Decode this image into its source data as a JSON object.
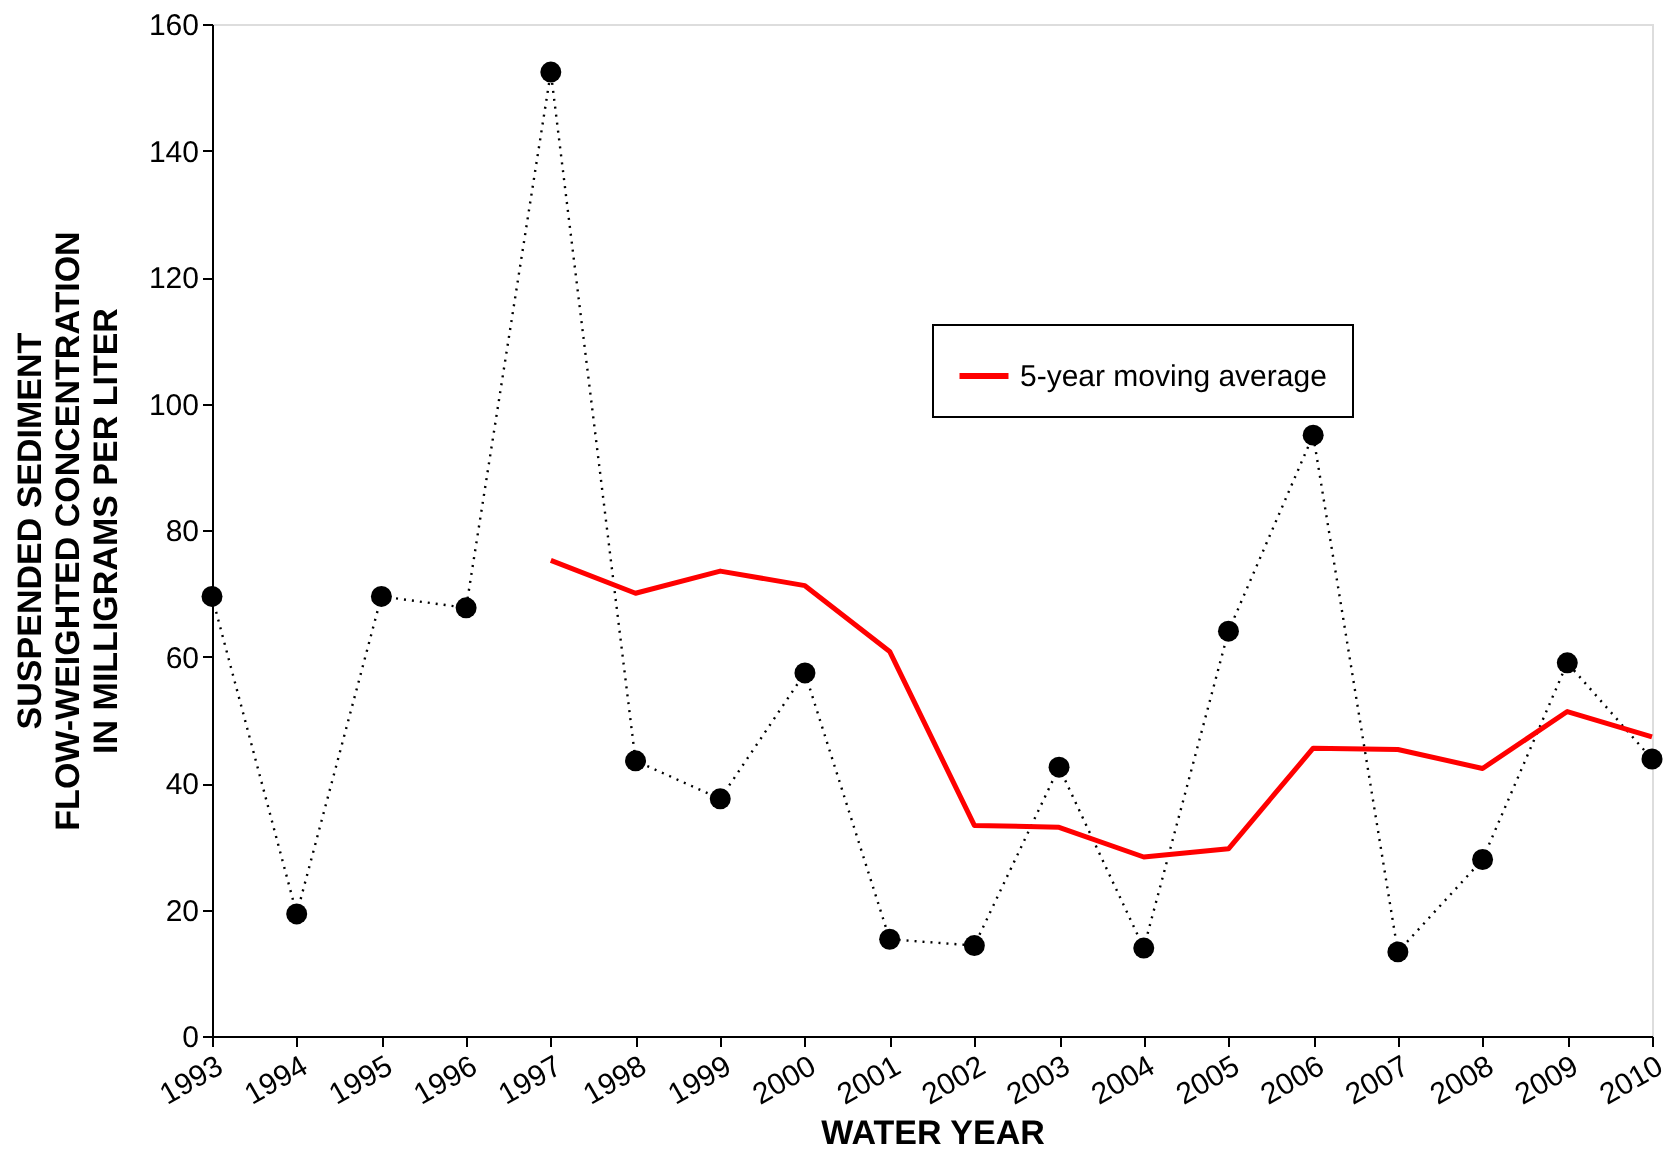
{
  "chart_data": {
    "type": "line",
    "xlabel": "WATER YEAR",
    "ylabel": "SUSPENDED SEDIMENT\nFLOW-WEIGHTED CONCENTRATION\nIN MILLIGRAMS PER LITER",
    "x": [
      1993,
      1994,
      1995,
      1996,
      1997,
      1998,
      1999,
      2000,
      2001,
      2002,
      2003,
      2004,
      2005,
      2006,
      2007,
      2008,
      2009,
      2010
    ],
    "series": [
      {
        "color": "#000000",
        "line_style": "dotted",
        "marker": "circle",
        "values": [
          69.5,
          19.3,
          69.5,
          67.7,
          152.4,
          43.5,
          37.5,
          57.4,
          15.3,
          14.3,
          42.5,
          13.9,
          64,
          95,
          13.3,
          27.9,
          59,
          43.8
        ]
      },
      {
        "name": "5-year moving average",
        "color": "#ff0000",
        "line_style": "solid",
        "marker": "none",
        "x": [
          1997,
          1998,
          1999,
          2000,
          2001,
          2002,
          2003,
          2004,
          2005,
          2006,
          2007,
          2008,
          2009,
          2010
        ],
        "values": [
          75.2,
          70,
          73.5,
          71.2,
          60.8,
          33.3,
          33,
          28.3,
          29.6,
          45.5,
          45.3,
          42.3,
          51.3,
          47.3
        ]
      }
    ],
    "xlim": [
      1993,
      2010
    ],
    "xticks": [
      1993,
      1994,
      1995,
      1996,
      1997,
      1998,
      1999,
      2000,
      2001,
      2002,
      2003,
      2004,
      2005,
      2006,
      2007,
      2008,
      2009,
      2010
    ],
    "ylim": [
      0,
      160
    ],
    "yticks": [
      0,
      20,
      40,
      60,
      80,
      100,
      120,
      140,
      160
    ],
    "grid": false,
    "legend": "top right"
  }
}
